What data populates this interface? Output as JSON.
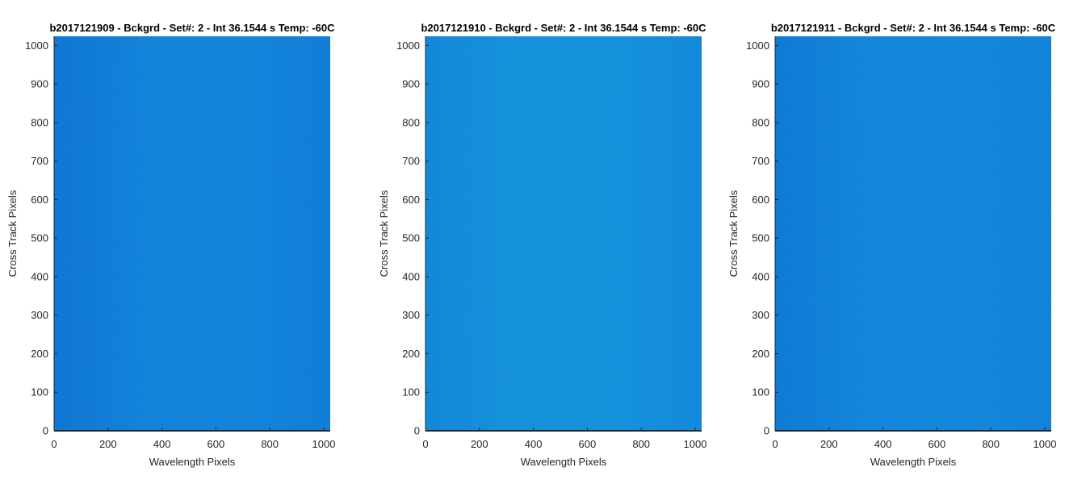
{
  "chart_data": [
    {
      "type": "heatmap",
      "title": "b2017121909 - Bckgrd - Set#: 2 - Int 36.1544 s Temp: -60C",
      "xlabel": "Wavelength Pixels",
      "ylabel": "Cross Track Pixels",
      "xlim": [
        0,
        1024
      ],
      "ylim": [
        0,
        1024
      ],
      "xticks": [
        0,
        200,
        400,
        600,
        800,
        1000
      ],
      "yticks": [
        0,
        100,
        200,
        300,
        400,
        500,
        600,
        700,
        800,
        900,
        1000
      ],
      "fill_colors": [
        "#0a72d2",
        "#0d7fd9",
        "#0e80da",
        "#0b7ad6"
      ],
      "grid": false
    },
    {
      "type": "heatmap",
      "title": "b2017121910 - Bckgrd - Set#: 2 - Int 36.1544 s Temp: -60C",
      "xlabel": "Wavelength Pixels",
      "ylabel": "Cross Track Pixels",
      "xlim": [
        0,
        1024
      ],
      "ylim": [
        0,
        1024
      ],
      "xticks": [
        0,
        200,
        400,
        600,
        800,
        1000
      ],
      "yticks": [
        0,
        100,
        200,
        300,
        400,
        500,
        600,
        700,
        800,
        900,
        1000
      ],
      "fill_colors": [
        "#0d85d8",
        "#1190da",
        "#1090db",
        "#0e87d9"
      ],
      "grid": false
    },
    {
      "type": "heatmap",
      "title": "b2017121911 - Bckgrd - Set#: 2 - Int 36.1544 s Temp: -60C",
      "xlabel": "Wavelength Pixels",
      "ylabel": "Cross Track Pixels",
      "xlim": [
        0,
        1024
      ],
      "ylim": [
        0,
        1024
      ],
      "xticks": [
        0,
        200,
        400,
        600,
        800,
        1000
      ],
      "yticks": [
        0,
        100,
        200,
        300,
        400,
        500,
        600,
        700,
        800,
        900,
        1000
      ],
      "fill_colors": [
        "#0a76d4",
        "#0e83da",
        "#0f85da",
        "#0c7fd8"
      ],
      "grid": false
    }
  ]
}
